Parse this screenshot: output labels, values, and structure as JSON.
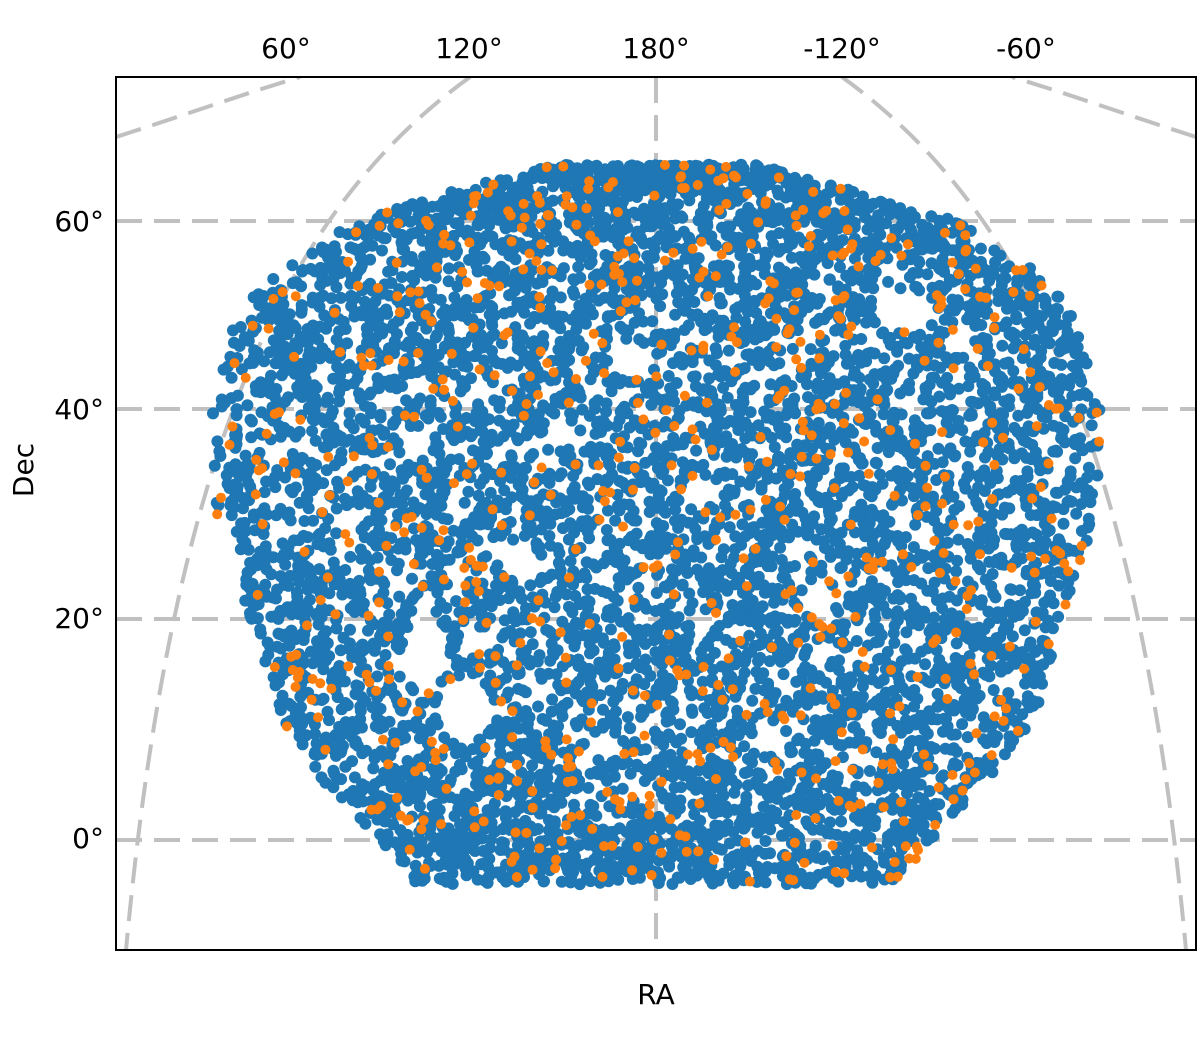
{
  "chart_data": {
    "type": "scatter",
    "projection": "sky map (RA / Dec graticule)",
    "xlabel": "RA",
    "ylabel": "Dec",
    "ra_tick_labels": [
      "60°",
      "120°",
      "180°",
      "-120°",
      "-60°"
    ],
    "dec_tick_labels": [
      "60°",
      "40°",
      "20°",
      "0°"
    ],
    "grid": true,
    "grid_style": "dashed",
    "colors": {
      "blue_points": "#1f77b4",
      "orange_points": "#ff7f0e",
      "grid": "#c0c0c0",
      "frame": "#000000"
    },
    "series": [
      {
        "color_key": "blue_points",
        "approx_count": 7000,
        "footprint": {
          "dec_range": [
            -4,
            66
          ],
          "description": "dense, roughly uniform coverage of a rounded footprint centred on RA 180°, with small voids"
        }
      },
      {
        "color_key": "orange_points",
        "approx_count": 700,
        "footprint": {
          "dec_range": [
            -4,
            66
          ],
          "description": "sparser subset scattered across the same footprint"
        }
      }
    ]
  }
}
